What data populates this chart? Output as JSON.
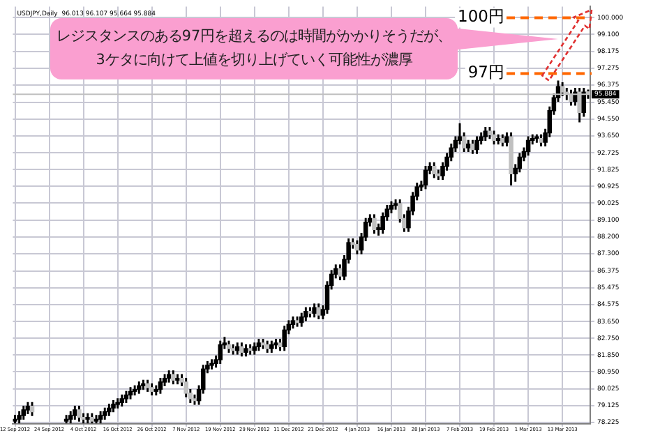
{
  "chart_data": {
    "type": "candlestick",
    "title": "USDJPY,Daily  96.013 96.107 95.664 95.884",
    "annotations": [
      "レジスタンスのある97円を超えるのは時間がかかりそうだが、",
      "3ケタに向けて上値を切り上げていく可能性が濃厚"
    ],
    "categories": [
      "12 Sep 2012",
      null,
      null,
      null,
      null,
      null,
      null,
      null,
      "24 Sep 2012",
      null,
      null,
      null,
      null,
      null,
      null,
      null,
      "4 Oct 2012",
      null,
      null,
      null,
      null,
      null,
      null,
      null,
      "16 Oct 2012",
      null,
      null,
      null,
      null,
      null,
      null,
      null,
      "26 Oct 2012",
      null,
      null,
      null,
      null,
      null,
      null,
      null,
      "7 Nov 2012",
      null,
      null,
      null,
      null,
      null,
      null,
      null,
      "19 Nov 2012",
      null,
      null,
      null,
      null,
      null,
      null,
      null,
      "29 Nov 2012",
      null,
      null,
      null,
      null,
      null,
      null,
      null,
      "11 Dec 2012",
      null,
      null,
      null,
      null,
      null,
      null,
      null,
      "21 Dec 2012",
      null,
      null,
      null,
      null,
      null,
      null,
      null,
      "4 Jan 2013",
      null,
      null,
      null,
      null,
      null,
      null,
      null,
      "16 Jan 2013",
      null,
      null,
      null,
      null,
      null,
      null,
      null,
      "28 Jan 2013",
      null,
      null,
      null,
      null,
      null,
      null,
      null,
      "7 Feb 2013",
      null,
      null,
      null,
      null,
      null,
      null,
      null,
      "19 Feb 2013",
      null,
      null,
      null,
      null,
      null,
      null,
      null,
      "1 Mar 2013",
      null,
      null,
      null,
      null,
      null,
      null,
      null,
      "13 Mar 2013",
      null,
      null,
      null,
      null,
      null,
      null
    ],
    "ohlc": [
      [
        78.3,
        78.6,
        78.2,
        78.4
      ],
      [
        78.4,
        78.8,
        78.2,
        78.6
      ],
      [
        78.6,
        79.1,
        78.4,
        78.9
      ],
      [
        78.9,
        79.3,
        78.7,
        79.1
      ],
      [
        79.1,
        79.3,
        78.6,
        78.8
      ],
      null,
      null,
      null,
      null,
      null,
      null,
      null,
      [
        78.3,
        78.6,
        78.2,
        78.4
      ],
      [
        78.4,
        78.8,
        78.2,
        78.6
      ],
      [
        78.6,
        79.1,
        78.4,
        78.9
      ],
      [
        78.9,
        79.1,
        78.3,
        78.5
      ],
      [
        78.5,
        78.7,
        78.2,
        78.4
      ],
      [
        78.4,
        78.7,
        78.2,
        78.5
      ],
      [
        78.5,
        78.7,
        78.2,
        78.3
      ],
      [
        78.3,
        78.6,
        78.2,
        78.4
      ],
      [
        78.4,
        78.8,
        78.2,
        78.6
      ],
      [
        78.6,
        79.0,
        78.4,
        78.8
      ],
      [
        78.8,
        79.2,
        78.6,
        79.0
      ],
      [
        79.0,
        79.4,
        78.8,
        79.2
      ],
      [
        79.2,
        79.5,
        79.0,
        79.3
      ],
      [
        79.3,
        79.7,
        79.1,
        79.5
      ],
      [
        79.5,
        79.9,
        79.3,
        79.7
      ],
      [
        79.7,
        80.1,
        79.5,
        79.9
      ],
      [
        79.9,
        80.2,
        79.7,
        80.0
      ],
      [
        80.0,
        80.4,
        79.8,
        80.2
      ],
      [
        80.2,
        80.5,
        80.0,
        80.3
      ],
      [
        80.3,
        80.5,
        79.9,
        80.1
      ],
      [
        80.1,
        80.3,
        79.7,
        79.9
      ],
      [
        79.9,
        80.2,
        79.7,
        80.0
      ],
      [
        80.0,
        80.6,
        79.8,
        80.4
      ],
      [
        80.4,
        80.8,
        80.2,
        80.6
      ],
      [
        80.6,
        81.0,
        80.4,
        80.8
      ],
      [
        80.8,
        81.0,
        80.3,
        80.5
      ],
      [
        80.5,
        80.8,
        80.3,
        80.6
      ],
      [
        80.6,
        80.8,
        80.2,
        80.4
      ],
      [
        80.4,
        80.6,
        79.6,
        79.8
      ],
      [
        79.8,
        80.0,
        79.3,
        79.5
      ],
      [
        79.5,
        79.7,
        79.2,
        79.4
      ],
      [
        79.4,
        80.2,
        79.2,
        80.0
      ],
      [
        80.0,
        81.3,
        79.8,
        81.1
      ],
      [
        81.1,
        81.5,
        80.9,
        81.3
      ],
      [
        81.3,
        81.6,
        81.1,
        81.4
      ],
      [
        81.4,
        81.8,
        81.2,
        81.6
      ],
      [
        81.6,
        82.6,
        81.4,
        82.4
      ],
      [
        82.4,
        82.8,
        82.2,
        82.5
      ],
      [
        82.4,
        82.6,
        82.0,
        82.2
      ],
      [
        82.2,
        82.4,
        81.9,
        82.1
      ],
      [
        82.1,
        82.5,
        81.9,
        82.3
      ],
      [
        82.3,
        82.5,
        81.8,
        82.0
      ],
      [
        82.0,
        82.4,
        81.8,
        82.2
      ],
      [
        82.2,
        82.4,
        81.9,
        82.1
      ],
      [
        82.1,
        82.5,
        81.9,
        82.3
      ],
      [
        82.3,
        82.7,
        82.1,
        82.5
      ],
      [
        82.5,
        82.7,
        82.2,
        82.4
      ],
      [
        82.4,
        82.6,
        82.0,
        82.2
      ],
      [
        82.2,
        82.6,
        82.0,
        82.4
      ],
      [
        82.4,
        82.7,
        82.2,
        82.5
      ],
      [
        82.5,
        82.7,
        82.1,
        82.3
      ],
      [
        82.3,
        83.4,
        82.1,
        83.2
      ],
      [
        83.2,
        83.7,
        83.0,
        83.5
      ],
      [
        83.5,
        83.9,
        83.3,
        83.7
      ],
      [
        83.7,
        83.9,
        83.4,
        83.6
      ],
      [
        83.6,
        84.1,
        83.4,
        83.9
      ],
      [
        83.9,
        84.4,
        83.7,
        84.2
      ],
      [
        84.2,
        84.4,
        83.9,
        84.1
      ],
      [
        84.1,
        84.6,
        83.9,
        84.4
      ],
      [
        84.4,
        84.6,
        83.8,
        84.0
      ],
      [
        84.0,
        84.5,
        83.8,
        84.3
      ],
      [
        84.3,
        85.8,
        84.1,
        85.6
      ],
      [
        85.6,
        86.4,
        85.4,
        86.2
      ],
      [
        86.2,
        86.7,
        86.0,
        86.5
      ],
      [
        86.5,
        86.7,
        85.9,
        86.1
      ],
      [
        86.1,
        87.2,
        85.9,
        87.0
      ],
      [
        87.0,
        88.1,
        86.8,
        87.9
      ],
      [
        87.9,
        88.1,
        87.6,
        87.8
      ],
      [
        87.8,
        88.0,
        87.3,
        87.5
      ],
      [
        87.5,
        88.4,
        87.3,
        88.2
      ],
      [
        88.2,
        89.2,
        88.0,
        89.0
      ],
      [
        89.0,
        89.4,
        88.8,
        89.2
      ],
      [
        89.2,
        89.4,
        88.4,
        88.6
      ],
      [
        88.6,
        88.9,
        88.3,
        88.7
      ],
      [
        88.6,
        89.5,
        88.4,
        89.3
      ],
      [
        89.3,
        89.9,
        89.1,
        89.7
      ],
      [
        89.7,
        90.1,
        89.5,
        89.9
      ],
      [
        89.9,
        90.2,
        89.7,
        90.0
      ],
      [
        90.0,
        90.2,
        89.0,
        89.2
      ],
      [
        89.2,
        89.4,
        88.5,
        88.7
      ],
      [
        88.7,
        89.8,
        88.5,
        89.6
      ],
      [
        89.6,
        90.6,
        89.4,
        90.4
      ],
      [
        90.4,
        91.1,
        90.2,
        90.9
      ],
      [
        90.9,
        91.2,
        90.7,
        91.0
      ],
      [
        91.0,
        92.0,
        90.8,
        91.8
      ],
      [
        91.8,
        92.2,
        91.6,
        92.0
      ],
      [
        92.0,
        92.2,
        91.4,
        91.6
      ],
      [
        91.6,
        91.8,
        91.3,
        91.5
      ],
      [
        91.5,
        92.2,
        91.3,
        92.0
      ],
      [
        92.0,
        92.7,
        91.8,
        92.5
      ],
      [
        92.5,
        93.2,
        92.3,
        93.0
      ],
      [
        93.0,
        93.6,
        92.8,
        93.4
      ],
      [
        93.4,
        94.3,
        93.2,
        93.6
      ],
      [
        93.6,
        93.8,
        92.8,
        93.0
      ],
      [
        93.0,
        93.4,
        92.8,
        93.2
      ],
      [
        93.2,
        93.4,
        92.7,
        92.9
      ],
      [
        92.9,
        93.6,
        92.7,
        93.4
      ],
      [
        93.4,
        93.8,
        93.2,
        93.6
      ],
      [
        93.6,
        94.1,
        93.4,
        93.9
      ],
      [
        93.9,
        94.1,
        93.5,
        93.7
      ],
      [
        93.7,
        93.9,
        93.2,
        93.4
      ],
      [
        93.4,
        93.7,
        93.2,
        93.5
      ],
      [
        93.5,
        93.7,
        93.1,
        93.3
      ],
      [
        93.3,
        93.8,
        93.1,
        93.6
      ],
      [
        93.6,
        93.8,
        91.0,
        91.6
      ],
      [
        91.6,
        92.1,
        91.2,
        91.9
      ],
      [
        91.9,
        92.7,
        91.7,
        92.5
      ],
      [
        92.5,
        93.0,
        92.3,
        92.8
      ],
      [
        92.8,
        93.6,
        92.6,
        93.4
      ],
      [
        93.4,
        93.7,
        93.2,
        93.5
      ],
      [
        93.5,
        93.7,
        93.3,
        93.6
      ],
      [
        93.5,
        93.7,
        93.1,
        93.3
      ],
      [
        93.3,
        94.0,
        93.1,
        93.8
      ],
      [
        93.8,
        95.2,
        93.6,
        95.0
      ],
      [
        95.0,
        95.9,
        94.8,
        95.7
      ],
      [
        95.7,
        96.6,
        95.5,
        96.3
      ],
      [
        96.3,
        96.5,
        95.8,
        96.0
      ],
      [
        96.0,
        96.2,
        95.6,
        95.9
      ],
      [
        95.9,
        96.1,
        95.3,
        95.5
      ],
      [
        95.5,
        96.2,
        95.3,
        96.0
      ],
      [
        96.0,
        96.2,
        94.4,
        94.9
      ],
      [
        94.9,
        96.2,
        94.7,
        96.0
      ],
      [
        96.013,
        96.107,
        95.664,
        95.884
      ]
    ],
    "colors": [
      "#000000",
      "#000000",
      "#000000",
      "#000000",
      "#c0c0c0",
      null,
      null,
      null,
      null,
      null,
      null,
      null,
      "#000000",
      "#000000",
      "#000000",
      "#c0c0c0",
      "#c0c0c0",
      "#000000",
      "#c0c0c0",
      "#000000",
      "#000000",
      "#000000",
      "#000000",
      "#000000",
      "#000000",
      "#000000",
      "#000000",
      "#000000",
      "#000000",
      "#000000",
      "#000000",
      "#c0c0c0",
      "#c0c0c0",
      "#000000",
      "#000000",
      "#000000",
      "#000000",
      "#c0c0c0",
      "#000000",
      "#c0c0c0",
      "#c0c0c0",
      "#c0c0c0",
      "#c0c0c0",
      "#000000",
      "#000000",
      "#000000",
      "#000000",
      "#000000",
      "#000000",
      "#000000",
      "#c0c0c0",
      "#c0c0c0",
      "#000000",
      "#c0c0c0",
      "#000000",
      "#c0c0c0",
      "#000000",
      "#000000",
      "#c0c0c0",
      "#c0c0c0",
      "#000000",
      "#000000",
      "#c0c0c0",
      "#000000",
      "#000000",
      "#000000",
      "#c0c0c0",
      "#000000",
      "#000000",
      "#c0c0c0",
      "#000000",
      "#c0c0c0",
      "#000000",
      "#000000",
      "#000000",
      "#000000",
      "#c0c0c0",
      "#000000",
      "#000000",
      "#c0c0c0",
      "#c0c0c0",
      "#000000",
      "#000000",
      "#000000",
      "#c0c0c0",
      "#000000",
      "#000000",
      "#000000",
      "#000000",
      "#000000",
      "#c0c0c0",
      "#c0c0c0",
      "#000000",
      "#000000",
      "#000000",
      "#000000",
      "#000000",
      "#000000",
      "#c0c0c0",
      "#c0c0c0",
      "#000000",
      "#000000",
      "#000000",
      "#000000",
      "#000000",
      "#c0c0c0",
      "#000000",
      "#c0c0c0",
      "#000000",
      "#000000",
      "#000000",
      "#c0c0c0",
      "#c0c0c0",
      "#000000",
      "#c0c0c0",
      "#000000",
      "#c0c0c0",
      "#000000",
      "#000000",
      "#000000",
      "#000000",
      "#000000",
      "#000000",
      "#c0c0c0",
      "#000000",
      "#000000",
      "#000000",
      "#000000",
      "#c0c0c0",
      "#c0c0c0",
      "#c0c0c0",
      "#000000",
      "#c0c0c0",
      "#000000",
      "#c0c0c0"
    ],
    "color": "#000000",
    "ylim": [
      78.15,
      100.6
    ],
    "yticks": [
      {
        "value": 100,
        "label": "100.000"
      },
      {
        "value": 99.1,
        "label": "99.100"
      },
      {
        "value": 98.175,
        "label": "98.175"
      },
      {
        "value": 97.275,
        "label": "97.275"
      },
      {
        "value": 96.375,
        "label": "96.375"
      },
      {
        "value": 95.45,
        "label": "95.450"
      },
      {
        "value": 94.55,
        "label": "94.550"
      },
      {
        "value": 93.65,
        "label": "93.650"
      },
      {
        "value": 92.725,
        "label": "92.725"
      },
      {
        "value": 91.825,
        "label": "91.825"
      },
      {
        "value": 90.925,
        "label": "90.925"
      },
      {
        "value": 90.025,
        "label": "90.025"
      },
      {
        "value": 89.1,
        "label": "89.100"
      },
      {
        "value": 88.2,
        "label": "88.200"
      },
      {
        "value": 87.3,
        "label": "87.300"
      },
      {
        "value": 86.375,
        "label": "86.375"
      },
      {
        "value": 85.475,
        "label": "85.475"
      },
      {
        "value": 84.575,
        "label": "84.575"
      },
      {
        "value": 83.65,
        "label": "83.650"
      },
      {
        "value": 82.75,
        "label": "82.750"
      },
      {
        "value": 81.85,
        "label": "81.850"
      },
      {
        "value": 80.95,
        "label": "80.950"
      },
      {
        "value": 80.025,
        "label": "80.025"
      },
      {
        "value": 79.125,
        "label": "79.125"
      },
      {
        "value": 78.225,
        "label": "78.225"
      }
    ],
    "grid": true,
    "ref_lines": [
      {
        "axis": "y",
        "value": 100,
        "label": "100円",
        "color": "#ff6600",
        "line_style": "dashed"
      },
      {
        "axis": "y",
        "value": 97,
        "label": "97円",
        "color": "#ff6600",
        "line_style": "dashed"
      },
      {
        "axis": "y",
        "value": 95.884,
        "label": "95.884",
        "color": "#c0c0c0",
        "line_style": "solid"
      }
    ]
  }
}
